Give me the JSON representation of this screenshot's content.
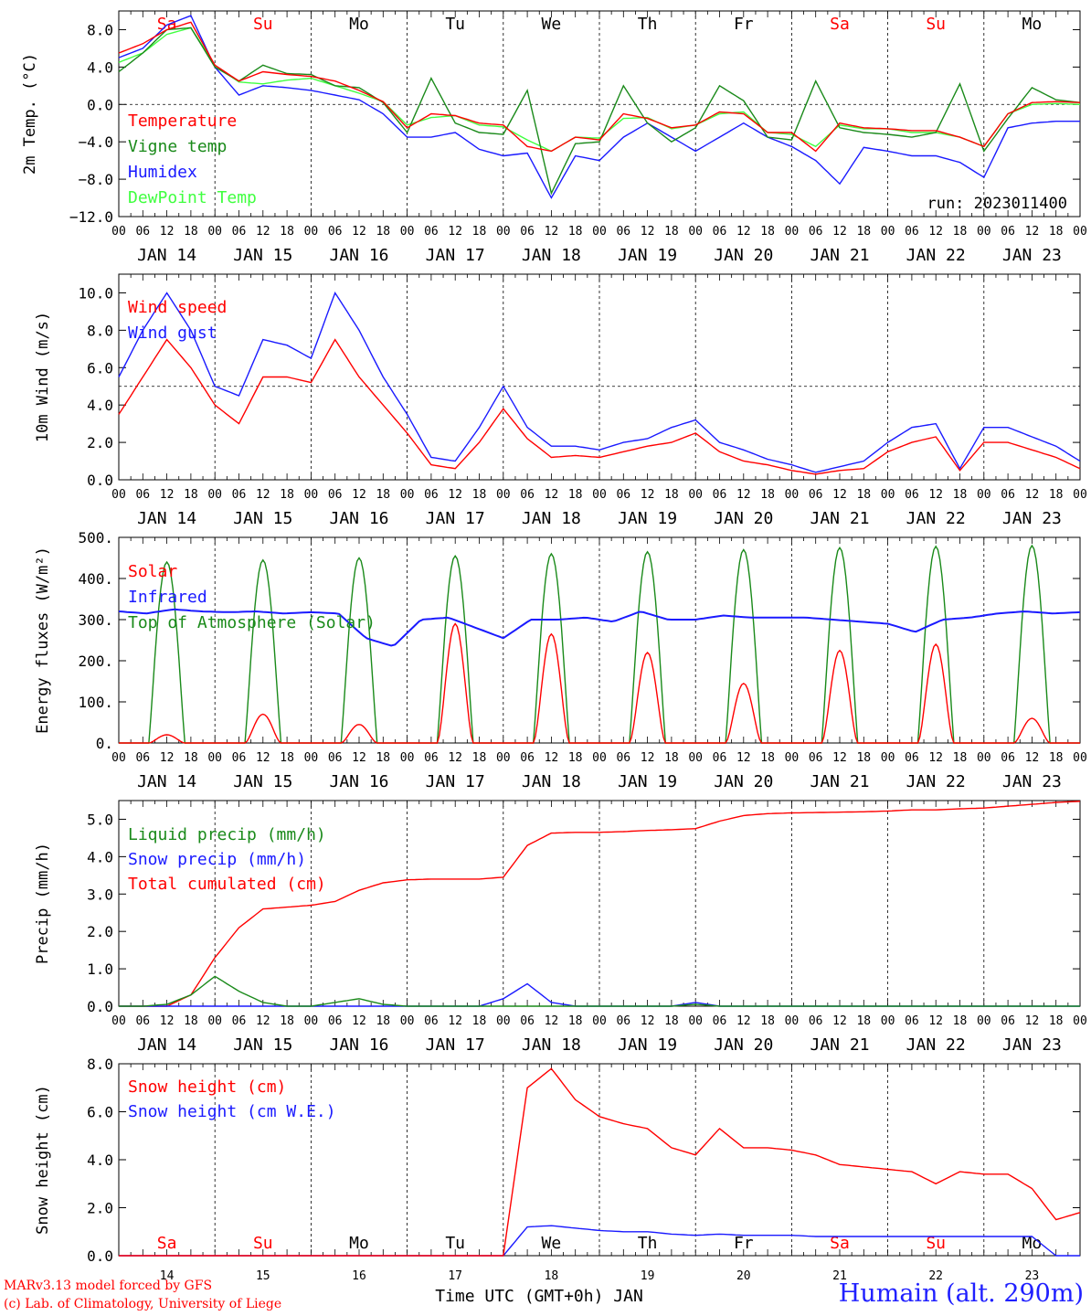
{
  "run_label": "run: 2023011400",
  "colors": {
    "red": "#ff0000",
    "green": "#1a8a1a",
    "blue": "#1a1aff",
    "lightgreen": "#40ff40",
    "weekend": "#ff0000",
    "weekday": "#000000",
    "grid": "#000000"
  },
  "days": [
    "Sa",
    "Su",
    "Mo",
    "Tu",
    "We",
    "Th",
    "Fr",
    "Sa",
    "Su",
    "Mo"
  ],
  "weekend": [
    true,
    true,
    false,
    false,
    false,
    false,
    false,
    true,
    true,
    false
  ],
  "dates": [
    "JAN 14",
    "JAN 15",
    "JAN 16",
    "JAN 17",
    "JAN 18",
    "JAN 19",
    "JAN 20",
    "JAN 21",
    "JAN 22",
    "JAN 23"
  ],
  "day_numbers": [
    "14",
    "15",
    "16",
    "17",
    "18",
    "19",
    "20",
    "21",
    "22",
    "23"
  ],
  "hour_ticks": [
    "00",
    "06",
    "12",
    "18"
  ],
  "xlabel": "Time UTC (GMT+0h) JAN",
  "footer": {
    "line1": "MARv3.13 model forced by GFS",
    "line2": "(c) Lab. of Climatology, University of Liege"
  },
  "station": "Humain (alt. 290m)",
  "chart_data": [
    {
      "type": "line",
      "ylabel": "2m Temp. (°C)",
      "ylim": [
        -12,
        10
      ],
      "yticks": [
        -12,
        -8,
        -4,
        0,
        4,
        8
      ],
      "ytick_labels": [
        "−12.0",
        "−8.0",
        "−4.0",
        "0.0",
        "4.0",
        "8.0"
      ],
      "ref_line": 0,
      "x_hours": [
        0,
        6,
        12,
        18,
        24,
        30,
        36,
        42,
        48,
        54,
        60,
        66,
        72,
        78,
        84,
        90,
        96,
        102,
        108,
        114,
        120,
        126,
        132,
        138,
        144,
        150,
        156,
        162,
        168,
        174,
        180,
        186,
        192,
        198,
        204,
        210,
        216,
        222,
        228,
        234,
        240
      ],
      "series": [
        {
          "name": "Temperature",
          "color": "red",
          "values": [
            5.5,
            6.5,
            8,
            8.8,
            4.2,
            2.5,
            3.5,
            3.2,
            3,
            2.5,
            1.5,
            0.3,
            -2.5,
            -1,
            -1.2,
            -2,
            -2.2,
            -4.5,
            -5,
            -3.5,
            -3.8,
            -1,
            -1.5,
            -2.5,
            -2.2,
            -0.8,
            -1,
            -3,
            -3,
            -5,
            -2,
            -2.5,
            -2.6,
            -2.8,
            -2.8,
            -3.5,
            -4.5,
            -1,
            0.2,
            0.3,
            0.2
          ]
        },
        {
          "name": "Vigne temp",
          "color": "green",
          "values": [
            3.5,
            5.5,
            8,
            8.2,
            4,
            2.5,
            4.2,
            3.3,
            3.2,
            2,
            1.8,
            0.2,
            -3,
            2.8,
            -2,
            -3,
            -3.2,
            1.5,
            -9.5,
            -4.2,
            -4,
            2,
            -2,
            -4,
            -2.5,
            2,
            0.4,
            -3.5,
            -3.8,
            2.5,
            -2.5,
            -3,
            -3.2,
            -3.5,
            -3,
            2.2,
            -5,
            -1.5,
            1.8,
            0.5,
            0.2
          ]
        },
        {
          "name": "Humidex",
          "color": "blue",
          "values": [
            5,
            6,
            8.5,
            9.5,
            4,
            1,
            2,
            1.8,
            1.5,
            1,
            0.5,
            -1,
            -3.5,
            -3.5,
            -3,
            -4.8,
            -5.5,
            -5.2,
            -10,
            -5.5,
            -6,
            -3.5,
            -2,
            -3.5,
            -5,
            -3.5,
            -2,
            -3.5,
            -4.5,
            -6,
            -8.5,
            -4.6,
            -5,
            -5.5,
            -5.5,
            -6.2,
            -7.8,
            -2.5,
            -2,
            -1.8,
            -1.8
          ]
        },
        {
          "name": "DewPoint Temp",
          "color": "lightgreen",
          "values": [
            4.5,
            5.5,
            7.5,
            8.2,
            4.2,
            2.4,
            2.2,
            2.6,
            2.8,
            2,
            1.2,
            0.3,
            -2.2,
            -1.4,
            -1.2,
            -2.2,
            -2.4,
            -3.8,
            -5,
            -3.5,
            -3.6,
            -1.5,
            -1.4,
            -2.6,
            -2.2,
            -1,
            -0.8,
            -3,
            -3.2,
            -4.5,
            -2.2,
            -2.6,
            -2.6,
            -3,
            -3,
            -3.5,
            -4.5,
            -1,
            0,
            0.1,
            0
          ]
        }
      ]
    },
    {
      "type": "line",
      "ylabel": "10m Wind (m/s)",
      "ylim": [
        0,
        11
      ],
      "yticks": [
        0,
        2,
        4,
        6,
        8,
        10
      ],
      "ytick_labels": [
        "0.0",
        "2.0",
        "4.0",
        "6.0",
        "8.0",
        "10.0"
      ],
      "ref_line": 5,
      "x_hours": [
        0,
        6,
        12,
        18,
        24,
        30,
        36,
        42,
        48,
        54,
        60,
        66,
        72,
        78,
        84,
        90,
        96,
        102,
        108,
        114,
        120,
        126,
        132,
        138,
        144,
        150,
        156,
        162,
        168,
        174,
        180,
        186,
        192,
        198,
        204,
        210,
        216,
        222,
        228,
        234,
        240
      ],
      "series": [
        {
          "name": "Wind speed",
          "color": "red",
          "values": [
            3.5,
            5.5,
            7.5,
            6,
            4,
            3,
            5.5,
            5.5,
            5.2,
            7.5,
            5.5,
            4,
            2.5,
            0.8,
            0.6,
            2,
            3.8,
            2.2,
            1.2,
            1.3,
            1.2,
            1.5,
            1.8,
            2,
            2.5,
            1.5,
            1,
            0.8,
            0.5,
            0.3,
            0.5,
            0.6,
            1.5,
            2,
            2.3,
            0.5,
            2,
            2,
            1.6,
            1.2,
            0.6
          ]
        },
        {
          "name": "Wind gust",
          "color": "blue",
          "values": [
            5.5,
            8,
            10,
            8,
            5,
            4.5,
            7.5,
            7.2,
            6.5,
            10,
            8,
            5.5,
            3.5,
            1.2,
            1,
            2.8,
            5,
            2.8,
            1.8,
            1.8,
            1.6,
            2,
            2.2,
            2.8,
            3.2,
            2,
            1.6,
            1.1,
            0.8,
            0.4,
            0.7,
            1,
            2,
            2.8,
            3,
            0.6,
            2.8,
            2.8,
            2.3,
            1.8,
            1
          ]
        }
      ]
    },
    {
      "type": "line",
      "ylabel": "Energy fluxes (W/m²)",
      "ylim": [
        0,
        500
      ],
      "yticks": [
        0,
        100,
        200,
        300,
        400,
        500
      ],
      "ytick_labels": [
        "0.",
        "100.",
        "200.",
        "300.",
        "400.",
        "500."
      ],
      "series": [
        {
          "name": "Solar",
          "color": "red",
          "day_peaks": [
            20,
            70,
            45,
            290,
            265,
            220,
            145,
            225,
            240,
            60
          ]
        },
        {
          "name": "Infrared",
          "color": "blue",
          "values": [
            320,
            315,
            325,
            320,
            318,
            320,
            315,
            318,
            315,
            255,
            235,
            300,
            305,
            280,
            255,
            300,
            300,
            305,
            295,
            320,
            300,
            300,
            310,
            305,
            305,
            305,
            300,
            295,
            290,
            270,
            300,
            305,
            315,
            320,
            315,
            318
          ]
        },
        {
          "name": "Top of Atmosphere (Solar)",
          "color": "green",
          "day_peaks": [
            440,
            445,
            450,
            455,
            460,
            465,
            470,
            475,
            478,
            480
          ]
        }
      ]
    },
    {
      "type": "line",
      "ylabel": "Precip (mm/h)",
      "ylim": [
        0,
        5.5
      ],
      "yticks": [
        0,
        1,
        2,
        3,
        4,
        5
      ],
      "ytick_labels": [
        "0.0",
        "1.0",
        "2.0",
        "3.0",
        "4.0",
        "5.0"
      ],
      "x_hours": [
        0,
        6,
        12,
        18,
        24,
        30,
        36,
        42,
        48,
        54,
        60,
        66,
        72,
        78,
        84,
        90,
        96,
        102,
        108,
        114,
        120,
        126,
        132,
        138,
        144,
        150,
        156,
        162,
        168,
        174,
        180,
        186,
        192,
        198,
        204,
        210,
        216,
        222,
        228,
        234,
        240
      ],
      "series": [
        {
          "name": "Liquid precip (mm/h)",
          "color": "green",
          "values": [
            0,
            0,
            0.05,
            0.3,
            0.8,
            0.4,
            0.1,
            0,
            0,
            0.1,
            0.2,
            0.05,
            0,
            0,
            0,
            0,
            0,
            0,
            0,
            0,
            0,
            0,
            0,
            0,
            0.05,
            0,
            0,
            0,
            0,
            0,
            0,
            0,
            0,
            0,
            0,
            0,
            0,
            0,
            0,
            0,
            0
          ]
        },
        {
          "name": "Snow precip (mm/h)",
          "color": "blue",
          "values": [
            0,
            0,
            0,
            0,
            0,
            0,
            0,
            0,
            0,
            0,
            0,
            0,
            0,
            0,
            0,
            0,
            0.2,
            0.6,
            0.1,
            0,
            0,
            0,
            0,
            0,
            0.1,
            0,
            0,
            0,
            0,
            0,
            0,
            0,
            0,
            0,
            0,
            0,
            0,
            0,
            0,
            0,
            0
          ]
        },
        {
          "name": "Total cumulated (cm)",
          "color": "red",
          "values": [
            0,
            0,
            0,
            0.3,
            1.3,
            2.1,
            2.6,
            2.65,
            2.7,
            2.8,
            3.1,
            3.3,
            3.38,
            3.4,
            3.4,
            3.4,
            3.45,
            4.3,
            4.63,
            4.65,
            4.65,
            4.67,
            4.7,
            4.72,
            4.75,
            4.95,
            5.1,
            5.15,
            5.17,
            5.18,
            5.19,
            5.2,
            5.22,
            5.25,
            5.25,
            5.28,
            5.3,
            5.35,
            5.4,
            5.45,
            5.48
          ]
        }
      ]
    },
    {
      "type": "line",
      "ylabel": "Snow height (cm)",
      "ylim": [
        0,
        8
      ],
      "yticks": [
        0,
        2,
        4,
        6,
        8
      ],
      "ytick_labels": [
        "0.0",
        "2.0",
        "4.0",
        "6.0",
        "8.0"
      ],
      "x_hours": [
        0,
        6,
        12,
        18,
        24,
        30,
        36,
        42,
        48,
        54,
        60,
        66,
        72,
        78,
        84,
        90,
        96,
        102,
        108,
        114,
        120,
        126,
        132,
        138,
        144,
        150,
        156,
        162,
        168,
        174,
        180,
        186,
        192,
        198,
        204,
        210,
        216,
        222,
        228,
        234,
        240
      ],
      "series": [
        {
          "name": "Snow height (cm)",
          "color": "red",
          "values": [
            0,
            0,
            0,
            0,
            0,
            0,
            0,
            0,
            0,
            0,
            0,
            0,
            0,
            0,
            0,
            0,
            0,
            7,
            7.8,
            6.5,
            5.8,
            5.5,
            5.3,
            4.5,
            4.2,
            5.3,
            4.5,
            4.5,
            4.4,
            4.2,
            3.8,
            3.7,
            3.6,
            3.5,
            3,
            3.5,
            3.4,
            3.4,
            2.8,
            1.5,
            1.8
          ]
        },
        {
          "name": "Snow height (cm W.E.)",
          "color": "blue",
          "values": [
            0,
            0,
            0,
            0,
            0,
            0,
            0,
            0,
            0,
            0,
            0,
            0,
            0,
            0,
            0,
            0,
            0,
            1.2,
            1.25,
            1.15,
            1.05,
            1,
            1,
            0.9,
            0.85,
            0.9,
            0.85,
            0.85,
            0.85,
            0.8,
            0.8,
            0.8,
            0.8,
            0.8,
            0.8,
            0.8,
            0.8,
            0.8,
            0.8,
            0,
            0
          ]
        }
      ]
    }
  ]
}
